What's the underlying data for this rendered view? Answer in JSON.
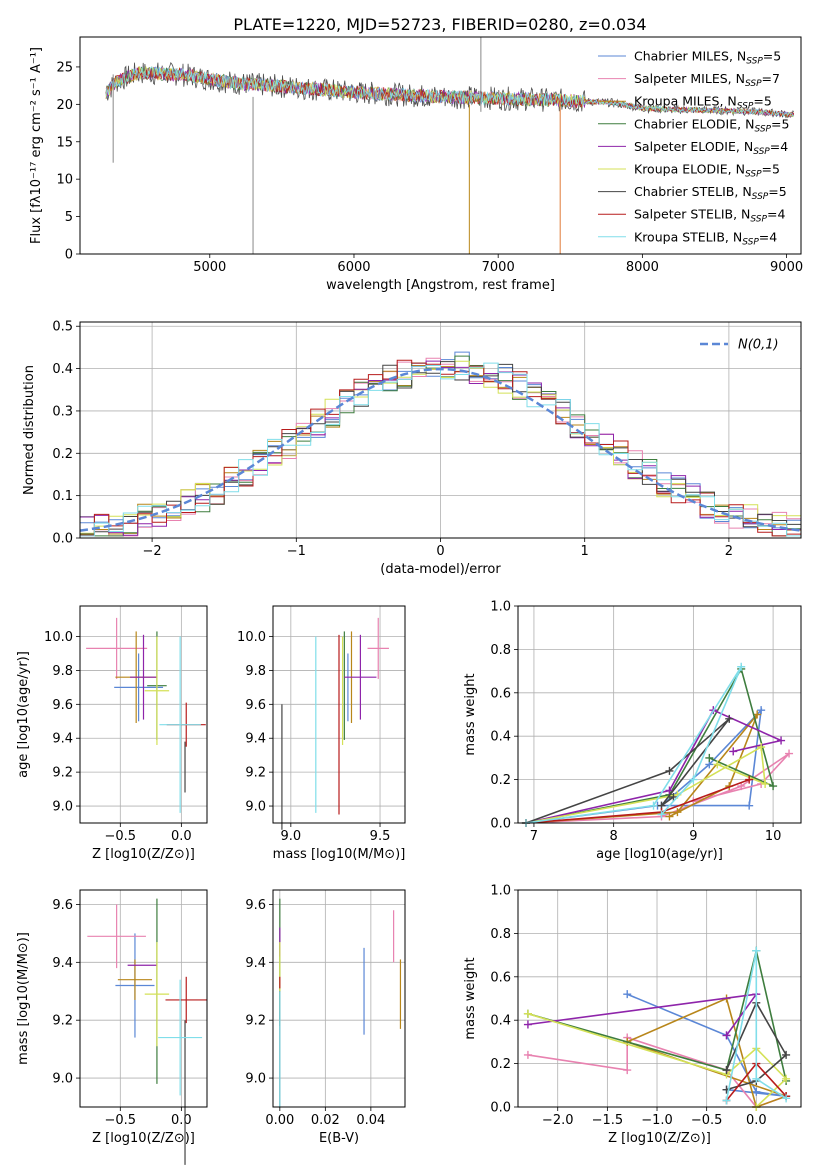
{
  "figure": {
    "title": "PLATE=1220, MJD=52723, FIBERID=0280, z=0.034"
  },
  "models": [
    {
      "name": "Chabrier MILES",
      "nssp": "5",
      "color": "#5b87d6"
    },
    {
      "name": "Salpeter MILES",
      "nssp": "7",
      "color": "#e882b0"
    },
    {
      "name": "Kroupa MILES",
      "nssp": "5",
      "color": "#b8861a"
    },
    {
      "name": "Chabrier ELODIE",
      "nssp": "5",
      "color": "#3e7d3e"
    },
    {
      "name": "Salpeter ELODIE",
      "nssp": "4",
      "color": "#8e24aa"
    },
    {
      "name": "Kroupa ELODIE",
      "nssp": "5",
      "color": "#d4e157"
    },
    {
      "name": "Chabrier STELIB",
      "nssp": "5",
      "color": "#444444"
    },
    {
      "name": "Salpeter STELIB",
      "nssp": "4",
      "color": "#b71c1c"
    },
    {
      "name": "Kroupa STELIB",
      "nssp": "4",
      "color": "#80deea"
    }
  ],
  "nssp_prefix": "N",
  "nssp_sub": "SSP",
  "chart_data": [
    {
      "id": "spectrum",
      "type": "line",
      "xlabel": "wavelength [Angstrom, rest frame]",
      "ylabel": "Flux [fλ10⁻¹⁷ erg cm⁻² s⁻¹ A⁻¹]",
      "xlim": [
        4100,
        9100
      ],
      "ylim": [
        0,
        29
      ],
      "xticks": [
        5000,
        6000,
        7000,
        8000,
        9000
      ],
      "yticks": [
        0,
        5,
        10,
        15,
        20,
        25
      ],
      "grid": false,
      "legend": "top-right",
      "continuum": [
        [
          4280,
          21.5
        ],
        [
          4350,
          23
        ],
        [
          4500,
          24.2
        ],
        [
          4800,
          24
        ],
        [
          5000,
          23.4
        ],
        [
          5200,
          22.8
        ],
        [
          5500,
          22.4
        ],
        [
          6000,
          21.6
        ],
        [
          6500,
          21.1
        ],
        [
          7000,
          20.8
        ],
        [
          7500,
          20.5
        ],
        [
          7800,
          20.2
        ],
        [
          8000,
          19.5
        ],
        [
          8200,
          19.3
        ],
        [
          8500,
          19.2
        ],
        [
          8800,
          19
        ],
        [
          9050,
          18.6
        ]
      ]
    },
    {
      "id": "residuals",
      "type": "histogram",
      "xlabel": "(data-model)/error",
      "ylabel": "Normed distribution",
      "xlim": [
        -2.5,
        2.5
      ],
      "ylim": [
        0,
        0.51
      ],
      "xticks": [
        -2,
        -1,
        0,
        1,
        2
      ],
      "yticks": [
        0.0,
        0.1,
        0.2,
        0.3,
        0.4,
        0.5
      ],
      "grid": true,
      "legend": "top-right",
      "reference_label": "N(0,1)",
      "reference_color": "#5b87d6",
      "bin_width": 0.1
    },
    {
      "id": "age-vs-Z",
      "type": "scatter",
      "xlabel": "Z [log10(Z/Z⊙)]",
      "ylabel": "age  [log10(age/yr)]",
      "xlim": [
        -0.83,
        0.21
      ],
      "ylim": [
        8.9,
        10.18
      ],
      "xticks": [
        -0.5,
        0.0
      ],
      "yticks": [
        9.0,
        9.2,
        9.4,
        9.6,
        9.8,
        10.0
      ],
      "grid": true,
      "points": [
        {
          "model": 0,
          "x": -0.35,
          "xerr": 0.2,
          "y": 9.7,
          "yerr": 0.2
        },
        {
          "model": 1,
          "x": -0.53,
          "xerr": 0.25,
          "y": 9.93,
          "yerr": 0.18
        },
        {
          "model": 2,
          "x": -0.37,
          "xerr": 0.17,
          "y": 9.76,
          "yerr": 0.27
        },
        {
          "model": 3,
          "x": -0.2,
          "xerr": 0.08,
          "y": 9.71,
          "yerr": 0.32
        },
        {
          "model": 4,
          "x": -0.31,
          "xerr": 0.11,
          "y": 9.76,
          "yerr": 0.25
        },
        {
          "model": 5,
          "x": -0.2,
          "xerr": 0.1,
          "y": 9.68,
          "yerr": 0.32
        },
        {
          "model": 6,
          "x": 0.03,
          "xerr": 0.0,
          "y": 9.23,
          "yerr": 0.15
        },
        {
          "model": 7,
          "x": 0.04,
          "xerr": 0.16,
          "y": 9.48,
          "yerr": 0.13
        },
        {
          "model": 8,
          "x": -0.01,
          "xerr": 0.17,
          "y": 9.48,
          "yerr": 0.52
        }
      ]
    },
    {
      "id": "age-vs-mass",
      "type": "scatter",
      "xlabel": "mass [log10(M/M⊙)]",
      "ylabel": "",
      "xlim": [
        8.9,
        9.64
      ],
      "ylim": [
        8.9,
        10.18
      ],
      "xticks": [
        9.0,
        9.5
      ],
      "yticks": [
        9.0,
        9.2,
        9.4,
        9.6,
        9.8,
        10.0
      ],
      "grid": true,
      "points": [
        {
          "model": 0,
          "x": 9.32,
          "xerr": 0.0,
          "y": 9.7,
          "yerr": 0.2
        },
        {
          "model": 1,
          "x": 9.49,
          "xerr": 0.06,
          "y": 9.93,
          "yerr": 0.18
        },
        {
          "model": 2,
          "x": 9.34,
          "xerr": 0.0,
          "y": 9.76,
          "yerr": 0.27
        },
        {
          "model": 3,
          "x": 9.3,
          "xerr": 0.0,
          "y": 9.71,
          "yerr": 0.32
        },
        {
          "model": 4,
          "x": 9.39,
          "xerr": 0.09,
          "y": 9.76,
          "yerr": 0.25
        },
        {
          "model": 5,
          "x": 9.29,
          "xerr": 0.0,
          "y": 9.68,
          "yerr": 0.32
        },
        {
          "model": 6,
          "x": 8.95,
          "xerr": 0.0,
          "y": 9.23,
          "yerr": 0.37
        },
        {
          "model": 7,
          "x": 9.27,
          "xerr": 0.0,
          "y": 9.48,
          "yerr": 0.53
        },
        {
          "model": 8,
          "x": 9.14,
          "xerr": 0.0,
          "y": 9.48,
          "yerr": 0.52
        }
      ]
    },
    {
      "id": "weight-vs-age",
      "type": "line",
      "xlabel": "age  [log10(age/yr)]",
      "ylabel": "mass weight",
      "xlim": [
        6.8,
        10.35
      ],
      "ylim": [
        0,
        1
      ],
      "xticks": [
        7,
        8,
        9,
        10
      ],
      "yticks": [
        0.0,
        0.2,
        0.4,
        0.6,
        0.8,
        1.0
      ],
      "grid": true,
      "series": [
        {
          "model": 0,
          "x": [
            6.9,
            8.55,
            9.7,
            9.85,
            9.2,
            8.6
          ],
          "y": [
            0.0,
            0.08,
            0.08,
            0.52,
            0.27,
            0.08
          ]
        },
        {
          "model": 1,
          "x": [
            6.9,
            8.6,
            9.6,
            10.2,
            9.85,
            9.0
          ],
          "y": [
            0.0,
            0.03,
            0.17,
            0.32,
            0.18,
            0.1
          ]
        },
        {
          "model": 2,
          "x": [
            6.9,
            8.8,
            9.8,
            9.45,
            8.7
          ],
          "y": [
            0.0,
            0.05,
            0.5,
            0.17,
            0.03
          ]
        },
        {
          "model": 3,
          "x": [
            6.9,
            8.7,
            9.6,
            10.0,
            9.2
          ],
          "y": [
            0.0,
            0.13,
            0.71,
            0.17,
            0.3
          ]
        },
        {
          "model": 4,
          "x": [
            6.9,
            8.7,
            9.25,
            10.1,
            9.5
          ],
          "y": [
            0.0,
            0.15,
            0.52,
            0.38,
            0.33
          ]
        },
        {
          "model": 5,
          "x": [
            6.9,
            8.8,
            9.85,
            9.9,
            9.3
          ],
          "y": [
            0.0,
            0.13,
            0.35,
            0.18,
            0.27
          ]
        },
        {
          "model": 6,
          "x": [
            6.9,
            8.7,
            9.45,
            8.6,
            8.75
          ],
          "y": [
            0.0,
            0.24,
            0.48,
            0.08,
            0.12
          ]
        },
        {
          "model": 7,
          "x": [
            6.9,
            8.6,
            9.7
          ],
          "y": [
            0.0,
            0.05,
            0.2
          ]
        },
        {
          "model": 8,
          "x": [
            6.9,
            8.5,
            9.6,
            9.0,
            8.6
          ],
          "y": [
            0.0,
            0.08,
            0.72,
            0.2,
            0.04
          ]
        }
      ]
    },
    {
      "id": "mass-vs-Z",
      "type": "scatter",
      "xlabel": "Z [log10(Z/Z⊙)]",
      "ylabel": "mass [log10(M/M⊙)]",
      "xlim": [
        -0.83,
        0.21
      ],
      "ylim": [
        8.9,
        9.65
      ],
      "xticks": [
        -0.5,
        0.0
      ],
      "yticks": [
        9.0,
        9.2,
        9.4,
        9.6
      ],
      "grid": true,
      "points": [
        {
          "model": 0,
          "x": -0.38,
          "xerr": 0.16,
          "y": 9.32,
          "yerr": 0.18
        },
        {
          "model": 1,
          "x": -0.53,
          "xerr": 0.24,
          "y": 9.49,
          "yerr": 0.11
        },
        {
          "model": 2,
          "x": -0.38,
          "xerr": 0.14,
          "y": 9.34,
          "yerr": 0.07
        },
        {
          "model": 3,
          "x": -0.2,
          "xerr": 0.0,
          "y": 9.3,
          "yerr": 0.32
        },
        {
          "model": 4,
          "x": -0.32,
          "xerr": 0.12,
          "y": 9.39,
          "yerr": 0.0
        },
        {
          "model": 5,
          "x": -0.2,
          "xerr": 0.1,
          "y": 9.29,
          "yerr": 0.18
        },
        {
          "model": 6,
          "x": 0.03,
          "xerr": 0.0,
          "y": 8.95,
          "yerr": 0.25
        },
        {
          "model": 7,
          "x": 0.04,
          "xerr": 0.17,
          "y": 9.27,
          "yerr": 0.08
        },
        {
          "model": 8,
          "x": -0.01,
          "xerr": 0.18,
          "y": 9.14,
          "yerr": 0.2
        }
      ]
    },
    {
      "id": "mass-vs-EBV",
      "type": "scatter",
      "xlabel": "E(B-V)",
      "ylabel": "",
      "xlim": [
        -0.003,
        0.055
      ],
      "ylim": [
        8.9,
        9.65
      ],
      "xticks": [
        0.0,
        0.02,
        0.04
      ],
      "yticks": [
        9.0,
        9.2,
        9.4,
        9.6
      ],
      "grid": true,
      "points": [
        {
          "model": 0,
          "x": 0.037,
          "xerr": 0.0,
          "y": 9.3,
          "yerr": 0.15
        },
        {
          "model": 1,
          "x": 0.05,
          "xerr": 0.0,
          "y": 9.49,
          "yerr": 0.09
        },
        {
          "model": 2,
          "x": 0.053,
          "xerr": 0.0,
          "y": 9.29,
          "yerr": 0.12
        },
        {
          "model": 3,
          "x": 0.0,
          "xerr": 0.0,
          "y": 9.4,
          "yerr": 0.22
        },
        {
          "model": 4,
          "x": 0.0,
          "xerr": 0.0,
          "y": 9.47,
          "yerr": 0.05
        },
        {
          "model": 5,
          "x": 0.0,
          "xerr": 0.0,
          "y": 9.35,
          "yerr": 0.12
        },
        {
          "model": 6,
          "x": 0.0,
          "xerr": 0.0,
          "y": 9.1,
          "yerr": 0.2
        },
        {
          "model": 7,
          "x": 0.0,
          "xerr": 0.0,
          "y": 9.33,
          "yerr": 0.02
        },
        {
          "model": 8,
          "x": 0.0,
          "xerr": 0.0,
          "y": 9.1,
          "yerr": 0.2
        }
      ]
    },
    {
      "id": "weight-vs-Z",
      "type": "line",
      "xlabel": "Z [log10(Z/Z⊙)]",
      "ylabel": "mass weight",
      "xlim": [
        -2.4,
        0.45
      ],
      "ylim": [
        0,
        1
      ],
      "xticks": [
        -2.0,
        -1.5,
        -1.0,
        -0.5,
        0.0
      ],
      "yticks": [
        0.0,
        0.2,
        0.4,
        0.6,
        0.8,
        1.0
      ],
      "grid": true,
      "series": [
        {
          "model": 0,
          "x": [
            -1.3,
            -0.3,
            0.0,
            0.3,
            -0.3
          ],
          "y": [
            0.52,
            0.33,
            0.07,
            0.05,
            0.08
          ]
        },
        {
          "model": 1,
          "x": [
            -2.3,
            -1.3,
            -1.3,
            -0.3,
            0.0,
            0.3
          ],
          "y": [
            0.24,
            0.17,
            0.32,
            0.17,
            0.0,
            0.05
          ]
        },
        {
          "model": 2,
          "x": [
            -1.3,
            -0.3,
            0.0,
            0.3,
            -1.3
          ],
          "y": [
            0.3,
            0.5,
            0.0,
            0.05,
            0.3
          ]
        },
        {
          "model": 3,
          "x": [
            -2.3,
            -0.3,
            0.0,
            0.3
          ],
          "y": [
            0.43,
            0.17,
            0.72,
            0.12
          ]
        },
        {
          "model": 4,
          "x": [
            -2.3,
            0.0,
            -0.3
          ],
          "y": [
            0.38,
            0.52,
            0.33
          ]
        },
        {
          "model": 5,
          "x": [
            -2.3,
            -0.3,
            0.0,
            0.3,
            0.0
          ],
          "y": [
            0.43,
            0.15,
            0.27,
            0.13,
            0.0
          ]
        },
        {
          "model": 6,
          "x": [
            -0.3,
            0.0,
            0.3,
            0.0,
            -0.3
          ],
          "y": [
            0.17,
            0.48,
            0.24,
            0.12,
            0.08
          ]
        },
        {
          "model": 7,
          "x": [
            -0.3,
            0.0,
            0.3
          ],
          "y": [
            0.03,
            0.2,
            0.05
          ]
        },
        {
          "model": 8,
          "x": [
            -0.3,
            0.0,
            0.0,
            0.3
          ],
          "y": [
            0.03,
            0.72,
            0.13,
            0.04
          ]
        }
      ]
    }
  ]
}
